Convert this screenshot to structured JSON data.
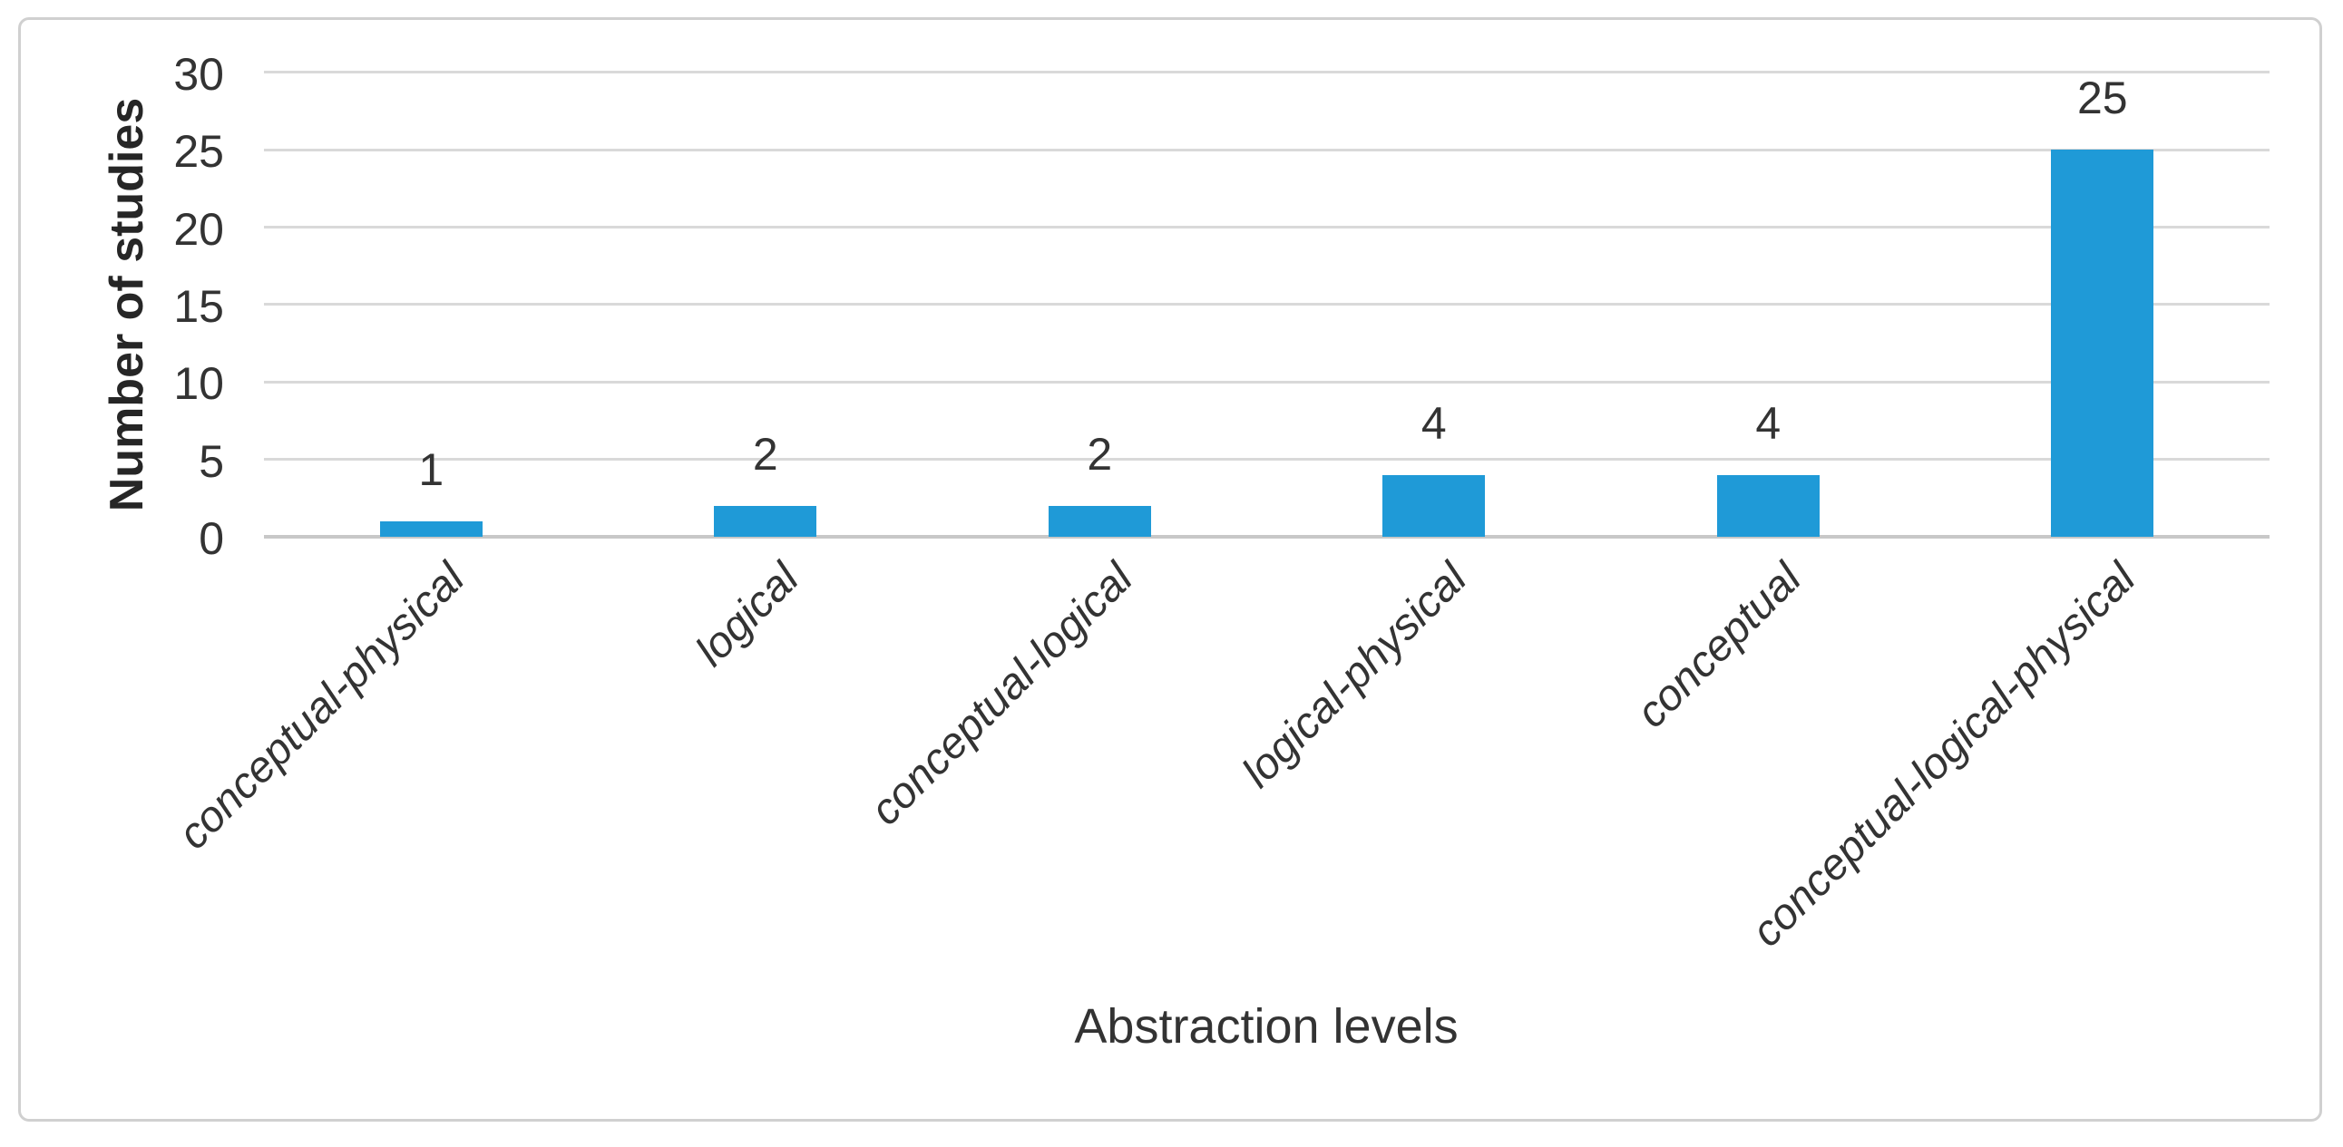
{
  "figure": {
    "background": "#ffffff",
    "border_color": "#d0d0d0"
  },
  "chart_data": {
    "type": "bar",
    "title": "",
    "categories": [
      "conceptual-physical",
      "logical",
      "conceptual-logical",
      "logical-physical",
      "conceptual",
      "conceptual-logical-physical"
    ],
    "values": [
      1,
      2,
      2,
      4,
      4,
      25
    ],
    "data_labels": [
      "1",
      "2",
      "2",
      "4",
      "4",
      "25"
    ],
    "xlabel": "Abstraction levels",
    "ylabel": "Number of studies",
    "y_ticks": [
      0,
      5,
      10,
      15,
      20,
      25,
      30
    ],
    "ylim": [
      0,
      30
    ],
    "grid": "horizontal",
    "legend": "none",
    "category_label_style": "italic, rotated 45deg",
    "colors": {
      "bar": "#1f9ad7",
      "gridline": "#d9d9d9",
      "axis_line": "#c8c8c8",
      "text": "#333333"
    }
  }
}
